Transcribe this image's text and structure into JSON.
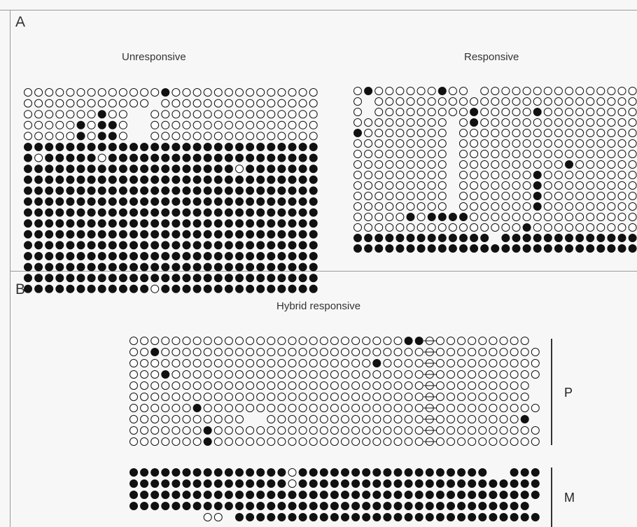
{
  "panels": {
    "a": {
      "letter": "A",
      "unresponsive": {
        "title": "Unresponsive",
        "rows": [
          "0000000000000100000000000000",
          "000000000000_000000000000000",
          "0000000100__0000000000000000",
          "0000010110__0000000000000000",
          "0000010110__0000000000000000",
          "1111111111111111111111111111",
          "1011111011111111111111111111",
          "1111111111111111111101111111",
          "1111111111111111111111111111",
          "1111111111111111111111111111",
          "1111111111111111111111111111",
          "1111111111111111111111111111",
          "1111111111111111111111111111",
          "1111111111111111111111111111",
          "1111111111111111111111111111",
          "1111111111111111111111111111",
          "1111111111111111111111111111",
          "1111111111111111111111111111",
          "1111111111110111111111111111"
        ]
      },
      "responsive": {
        "title": "Responsive",
        "rows": [
          "01000000100_0000000000000000",
          "0_00000000000000000000000000",
          "0_000000000100000100000000000",
          "000000000_0100000000000000000",
          "100000000_000000000000000000",
          "000000000_000000000000000000",
          "000000000_000000000000000000",
          "000000000_0000000000100000000",
          "000000000_0000000100000000000",
          "000000000_0000000100000000000",
          "000000000_0000000100000000000",
          "000000000_0000000100000000001",
          "000001011110000000000000000000",
          "0000000000000000100000000000",
          "1111111111111_111111111111111",
          "1111111111111111111111111111"
        ]
      }
    },
    "b": {
      "letter": "B",
      "hybrid": {
        "title": "Hybrid responsive",
        "p_label": "P",
        "m_label": "M",
        "p_rows": [
          "00000000000000000000000000110000000000",
          "0010000000000000000000000000000000000000",
          "00000000000000000000000100000000000000000",
          "000100000000000000000000000000000000000",
          "00000000000000000000000000000000000000",
          "00000000000000000000000000000000000000",
          "000000100000000000000000000000000000000",
          "00000000000__0000000000000000000000001",
          "0000000100000000000000000000000000000001",
          "0000000100000000000000000000000000000000"
        ],
        "m_rows": [
          "1111111111111110111111111111111111__111",
          "1111111111111110111111111111111111111111",
          "11111111111111111111111111111111111111111",
          "11111111111111111111111111111111111111",
          "_______00_11111111111111111111111111111"
        ]
      }
    }
  }
}
